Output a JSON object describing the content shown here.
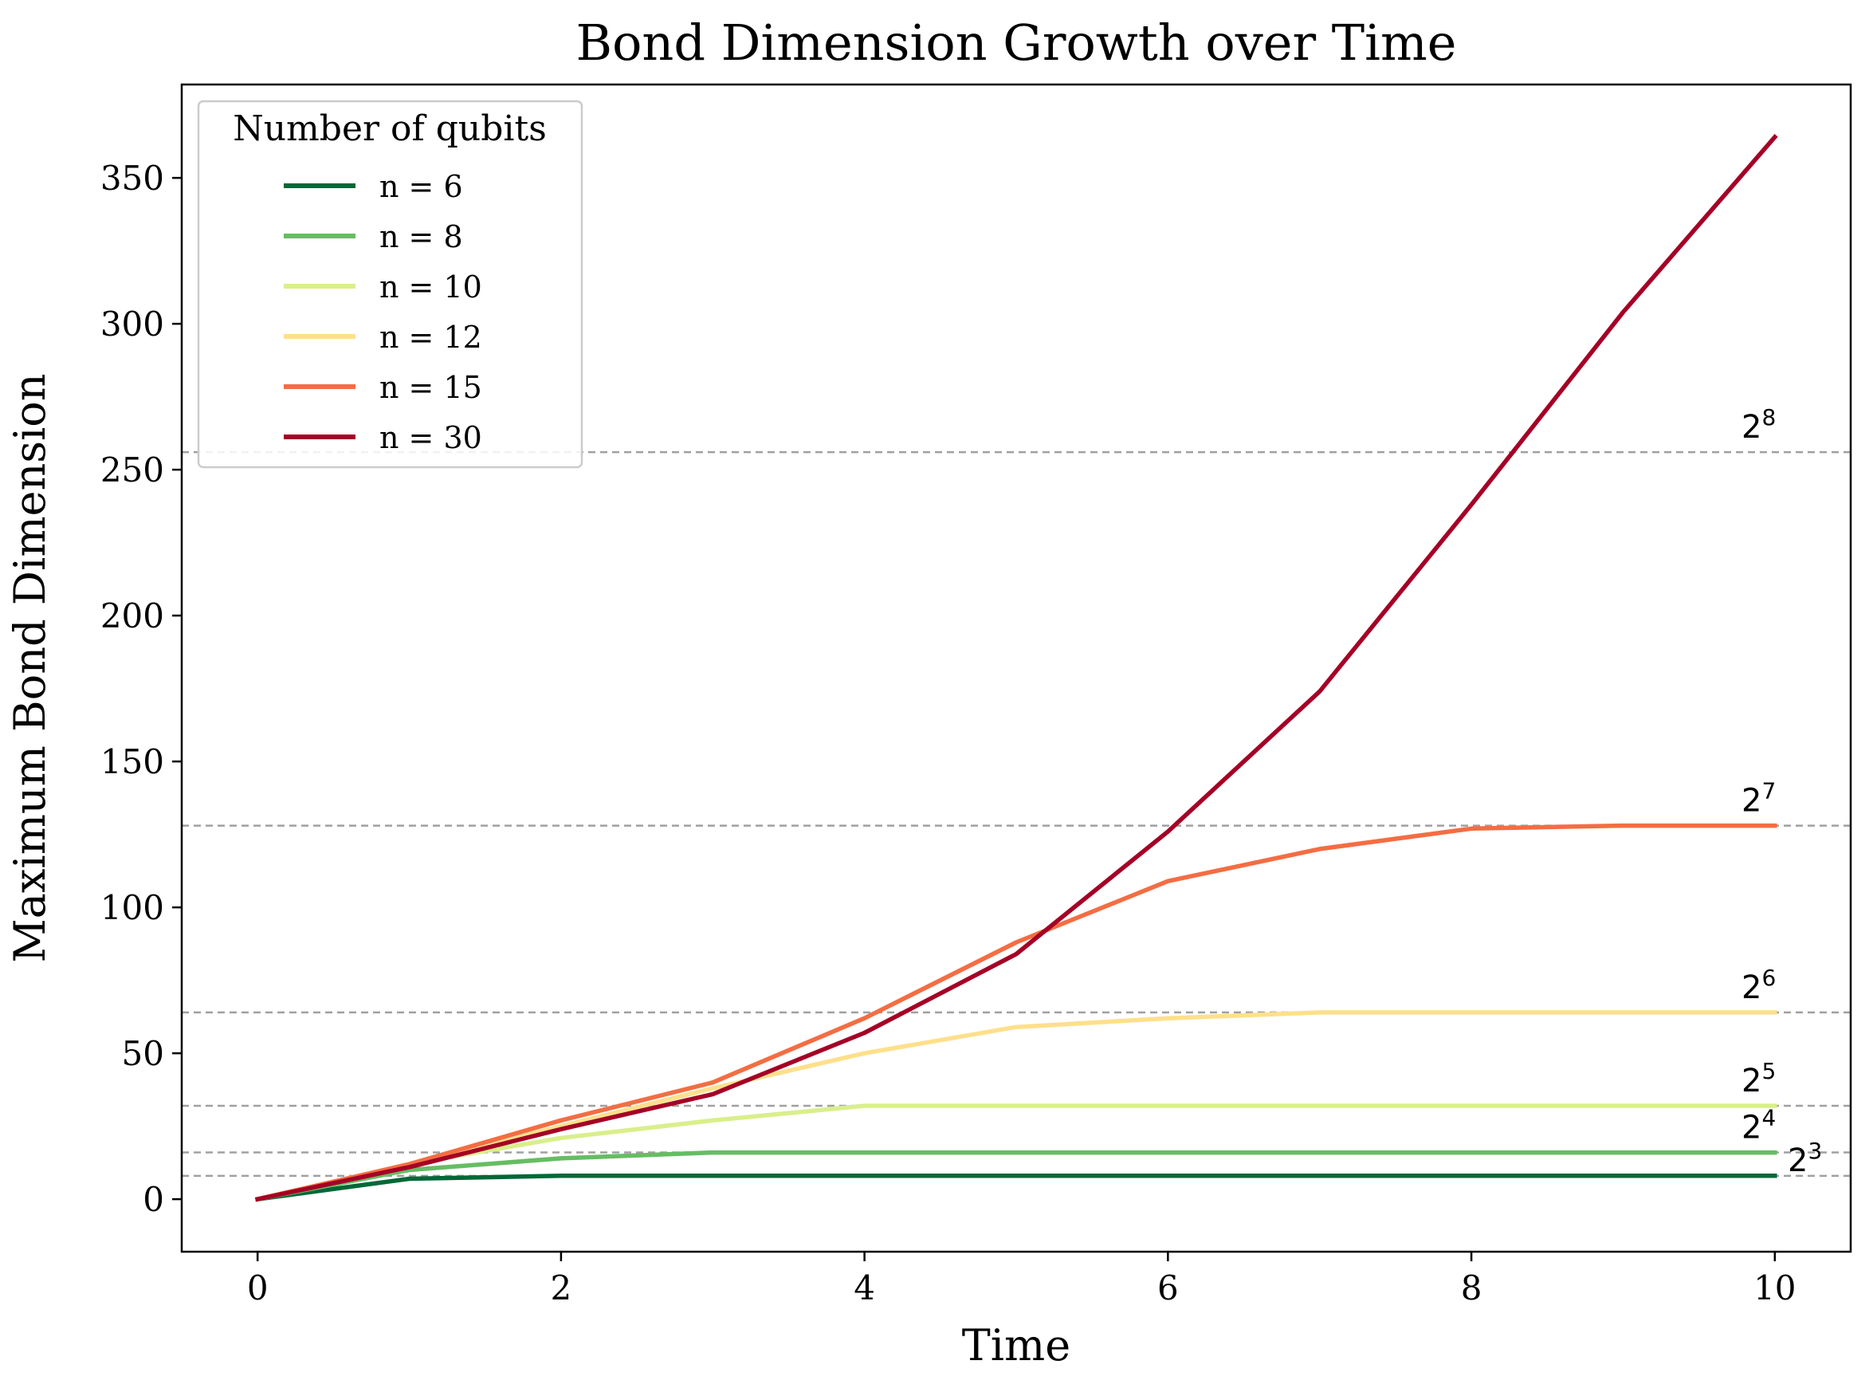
{
  "chart_data": {
    "type": "line",
    "title": "Bond Dimension Growth over Time",
    "xlabel": "Time",
    "ylabel": "Maximum Bond Dimension",
    "xlim": [
      -0.5,
      10.5
    ],
    "ylim": [
      -18,
      382
    ],
    "xticks": [
      0,
      2,
      4,
      6,
      8,
      10
    ],
    "yticks": [
      0,
      50,
      100,
      150,
      200,
      250,
      300,
      350
    ],
    "grid": false,
    "legend": {
      "title": "Number of qubits",
      "placement": "top-left"
    },
    "x": [
      0,
      1,
      2,
      3,
      4,
      5,
      6,
      7,
      8,
      9,
      10
    ],
    "series": [
      {
        "name": "n = 6",
        "color": "#006837",
        "values": [
          0,
          7,
          8,
          8,
          8,
          8,
          8,
          8,
          8,
          8,
          8
        ]
      },
      {
        "name": "n = 8",
        "color": "#66bd63",
        "values": [
          0,
          10,
          14,
          16,
          16,
          16,
          16,
          16,
          16,
          16,
          16
        ]
      },
      {
        "name": "n = 10",
        "color": "#d9ef8b",
        "values": [
          0,
          12,
          21,
          27,
          32,
          32,
          32,
          32,
          32,
          32,
          32
        ]
      },
      {
        "name": "n = 12",
        "color": "#fee08b",
        "values": [
          0,
          12,
          25,
          38,
          50,
          59,
          62,
          64,
          64,
          64,
          64
        ]
      },
      {
        "name": "n = 15",
        "color": "#f46d43",
        "values": [
          0,
          12,
          27,
          40,
          62,
          88,
          109,
          120,
          127,
          128,
          128
        ]
      },
      {
        "name": "n = 30",
        "color": "#a50026",
        "values": [
          0,
          11,
          24,
          36,
          57,
          84,
          126,
          174,
          238,
          304,
          364
        ]
      }
    ],
    "reference_lines": [
      {
        "value": 8,
        "base": "2",
        "exp": "3"
      },
      {
        "value": 16,
        "base": "2",
        "exp": "4"
      },
      {
        "value": 32,
        "base": "2",
        "exp": "5"
      },
      {
        "value": 64,
        "base": "2",
        "exp": "6"
      },
      {
        "value": 128,
        "base": "2",
        "exp": "7"
      },
      {
        "value": 256,
        "base": "2",
        "exp": "8"
      }
    ],
    "reference_line_color": "#a0a0a0"
  }
}
